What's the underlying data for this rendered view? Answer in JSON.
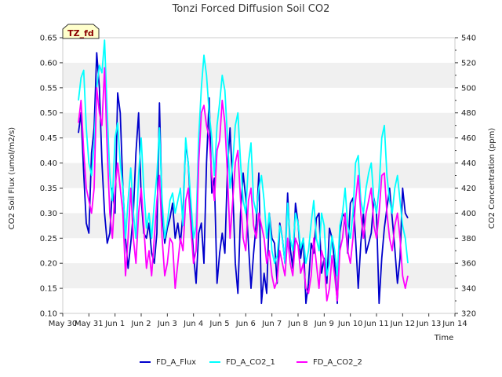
{
  "chart_data": {
    "type": "line",
    "title": "Tonzi Forced Diffusion Soil CO2",
    "xlabel": "Time",
    "ylabel_left": "CO2 Soil Flux (umol/m2/s)",
    "ylabel_right": "CO2 Concentration (ppm)",
    "tag": "TZ_fd",
    "xlim": [
      0,
      15
    ],
    "x_ticks": [
      0,
      1,
      2,
      3,
      4,
      5,
      6,
      7,
      8,
      9,
      10,
      11,
      12,
      13,
      14,
      15
    ],
    "x_tick_labels": [
      "May 30",
      "May 31",
      "Jun 1",
      "Jun 2",
      "Jun 3",
      "Jun 4",
      "Jun 5",
      "Jun 6",
      "Jun 7",
      "Jun 8",
      "Jun 9",
      "Jun 10",
      "Jun 11",
      "Jun 12",
      "Jun 13",
      "Jun 14"
    ],
    "ylim_left": [
      0.1,
      0.65
    ],
    "y_ticks_left": [
      0.1,
      0.15,
      0.2,
      0.25,
      0.3,
      0.35,
      0.4,
      0.45,
      0.5,
      0.55,
      0.6,
      0.65
    ],
    "y_tick_labels_left": [
      "0.10",
      "0.15",
      "0.20",
      "0.25",
      "0.30",
      "0.35",
      "0.40",
      "0.45",
      "0.50",
      "0.55",
      "0.60",
      "0.65"
    ],
    "ylim_right": [
      320,
      540
    ],
    "y_ticks_right": [
      320,
      340,
      360,
      380,
      400,
      420,
      440,
      460,
      480,
      500,
      520,
      540
    ],
    "y_tick_labels_right": [
      "320",
      "340",
      "360",
      "380",
      "400",
      "420",
      "440",
      "460",
      "480",
      "500",
      "520",
      "540"
    ],
    "legend_position": "bottom",
    "grid": "alternating horizontal bands",
    "series": [
      {
        "name": "FD_A_Flux",
        "axis": "left",
        "color": "#0000cc",
        "x": [
          0.6,
          0.7,
          0.8,
          0.9,
          1.0,
          1.1,
          1.2,
          1.3,
          1.4,
          1.5,
          1.6,
          1.7,
          1.8,
          1.9,
          2.0,
          2.1,
          2.2,
          2.3,
          2.4,
          2.5,
          2.6,
          2.7,
          2.8,
          2.9,
          3.0,
          3.1,
          3.2,
          3.3,
          3.4,
          3.5,
          3.6,
          3.7,
          3.8,
          3.9,
          4.0,
          4.1,
          4.2,
          4.3,
          4.4,
          4.5,
          4.6,
          4.7,
          4.8,
          4.9,
          5.0,
          5.1,
          5.2,
          5.3,
          5.4,
          5.5,
          5.6,
          5.7,
          5.8,
          5.9,
          6.0,
          6.1,
          6.2,
          6.3,
          6.4,
          6.5,
          6.6,
          6.7,
          6.8,
          6.9,
          7.0,
          7.1,
          7.2,
          7.3,
          7.4,
          7.5,
          7.6,
          7.7,
          7.8,
          7.9,
          8.0,
          8.1,
          8.2,
          8.3,
          8.4,
          8.5,
          8.6,
          8.7,
          8.8,
          8.9,
          9.0,
          9.1,
          9.2,
          9.3,
          9.4,
          9.5,
          9.6,
          9.7,
          9.8,
          9.9,
          10.0,
          10.1,
          10.2,
          10.3,
          10.4,
          10.5,
          10.6,
          10.7,
          10.8,
          10.9,
          11.0,
          11.1,
          11.2,
          11.3,
          11.4,
          11.5,
          11.6,
          11.7,
          11.8,
          11.9,
          12.0,
          12.1,
          12.2,
          12.3,
          12.4,
          12.5,
          12.6,
          12.7,
          12.8,
          12.9,
          13.0,
          13.1,
          13.2
        ],
        "y": [
          0.46,
          0.5,
          0.38,
          0.28,
          0.26,
          0.42,
          0.47,
          0.62,
          0.55,
          0.4,
          0.3,
          0.24,
          0.26,
          0.35,
          0.3,
          0.54,
          0.5,
          0.35,
          0.25,
          0.19,
          0.24,
          0.3,
          0.42,
          0.5,
          0.33,
          0.26,
          0.25,
          0.28,
          0.22,
          0.2,
          0.26,
          0.52,
          0.3,
          0.24,
          0.27,
          0.29,
          0.32,
          0.25,
          0.28,
          0.24,
          0.3,
          0.44,
          0.4,
          0.3,
          0.22,
          0.16,
          0.26,
          0.28,
          0.2,
          0.4,
          0.53,
          0.34,
          0.37,
          0.16,
          0.22,
          0.26,
          0.22,
          0.39,
          0.47,
          0.35,
          0.2,
          0.14,
          0.3,
          0.38,
          0.33,
          0.24,
          0.15,
          0.22,
          0.28,
          0.38,
          0.12,
          0.18,
          0.14,
          0.3,
          0.25,
          0.24,
          0.16,
          0.28,
          0.25,
          0.2,
          0.34,
          0.23,
          0.19,
          0.32,
          0.28,
          0.21,
          0.25,
          0.12,
          0.16,
          0.24,
          0.22,
          0.29,
          0.3,
          0.18,
          0.21,
          0.16,
          0.27,
          0.25,
          0.2,
          0.12,
          0.26,
          0.3,
          0.29,
          0.22,
          0.32,
          0.33,
          0.25,
          0.15,
          0.24,
          0.3,
          0.22,
          0.24,
          0.26,
          0.33,
          0.3,
          0.12,
          0.21,
          0.27,
          0.31,
          0.35,
          0.29,
          0.23,
          0.16,
          0.21,
          0.35,
          0.3,
          0.29
        ]
      },
      {
        "name": "FD_A_CO2_1",
        "axis": "right",
        "color": "#00ffff",
        "x": [
          0.6,
          0.7,
          0.8,
          0.9,
          1.0,
          1.1,
          1.2,
          1.3,
          1.4,
          1.5,
          1.6,
          1.7,
          1.8,
          1.9,
          2.0,
          2.1,
          2.2,
          2.3,
          2.4,
          2.5,
          2.6,
          2.7,
          2.8,
          2.9,
          3.0,
          3.1,
          3.2,
          3.3,
          3.4,
          3.5,
          3.6,
          3.7,
          3.8,
          3.9,
          4.0,
          4.1,
          4.2,
          4.3,
          4.4,
          4.5,
          4.6,
          4.7,
          4.8,
          4.9,
          5.0,
          5.1,
          5.2,
          5.3,
          5.4,
          5.5,
          5.6,
          5.7,
          5.8,
          5.9,
          6.0,
          6.1,
          6.2,
          6.3,
          6.4,
          6.5,
          6.6,
          6.7,
          6.8,
          6.9,
          7.0,
          7.1,
          7.2,
          7.3,
          7.4,
          7.5,
          7.6,
          7.7,
          7.8,
          7.9,
          8.0,
          8.1,
          8.2,
          8.3,
          8.4,
          8.5,
          8.6,
          8.7,
          8.8,
          8.9,
          9.0,
          9.1,
          9.2,
          9.3,
          9.4,
          9.5,
          9.6,
          9.7,
          9.8,
          9.9,
          10.0,
          10.1,
          10.2,
          10.3,
          10.4,
          10.5,
          10.6,
          10.7,
          10.8,
          10.9,
          11.0,
          11.1,
          11.2,
          11.3,
          11.4,
          11.5,
          11.6,
          11.7,
          11.8,
          11.9,
          12.0,
          12.1,
          12.2,
          12.3,
          12.4,
          12.5,
          12.6,
          12.7,
          12.8,
          12.9,
          13.0,
          13.1,
          13.2
        ],
        "y": [
          490,
          508,
          514,
          468,
          440,
          430,
          455,
          500,
          518,
          512,
          538,
          480,
          430,
          410,
          460,
          472,
          440,
          420,
          380,
          410,
          436,
          400,
          380,
          430,
          460,
          420,
          388,
          400,
          380,
          408,
          430,
          468,
          410,
          380,
          392,
          410,
          416,
          400,
          410,
          420,
          390,
          460,
          440,
          410,
          380,
          390,
          460,
          500,
          526,
          510,
          480,
          460,
          430,
          470,
          488,
          510,
          498,
          460,
          420,
          440,
          470,
          480,
          440,
          410,
          400,
          440,
          456,
          410,
          400,
          420,
          430,
          410,
          380,
          400,
          370,
          360,
          366,
          390,
          380,
          360,
          408,
          380,
          370,
          400,
          392,
          372,
          380,
          360,
          370,
          392,
          410,
          380,
          370,
          400,
          390,
          350,
          360,
          382,
          370,
          350,
          390,
          400,
          420,
          390,
          380,
          400,
          440,
          446,
          410,
          400,
          420,
          432,
          440,
          410,
          400,
          420,
          460,
          470,
          430,
          410,
          400,
          420,
          430,
          410,
          390,
          380,
          360
        ],
        "y_approx_note": ""
      },
      {
        "name": "FD_A_CO2_2",
        "axis": "right",
        "color": "#ff00ff",
        "x": [
          0.6,
          0.7,
          0.8,
          0.9,
          1.0,
          1.1,
          1.2,
          1.3,
          1.4,
          1.5,
          1.6,
          1.7,
          1.8,
          1.9,
          2.0,
          2.1,
          2.2,
          2.3,
          2.4,
          2.5,
          2.6,
          2.7,
          2.8,
          2.9,
          3.0,
          3.1,
          3.2,
          3.3,
          3.4,
          3.5,
          3.6,
          3.7,
          3.8,
          3.9,
          4.0,
          4.1,
          4.2,
          4.3,
          4.4,
          4.5,
          4.6,
          4.7,
          4.8,
          4.9,
          5.0,
          5.1,
          5.2,
          5.3,
          5.4,
          5.5,
          5.6,
          5.7,
          5.8,
          5.9,
          6.0,
          6.1,
          6.2,
          6.3,
          6.4,
          6.5,
          6.6,
          6.7,
          6.8,
          6.9,
          7.0,
          7.1,
          7.2,
          7.3,
          7.4,
          7.5,
          7.6,
          7.7,
          7.8,
          7.9,
          8.0,
          8.1,
          8.2,
          8.3,
          8.4,
          8.5,
          8.6,
          8.7,
          8.8,
          8.9,
          9.0,
          9.1,
          9.2,
          9.3,
          9.4,
          9.5,
          9.6,
          9.7,
          9.8,
          9.9,
          10.0,
          10.1,
          10.2,
          10.3,
          10.4,
          10.5,
          10.6,
          10.7,
          10.8,
          10.9,
          11.0,
          11.1,
          11.2,
          11.3,
          11.4,
          11.5,
          11.6,
          11.7,
          11.8,
          11.9,
          12.0,
          12.1,
          12.2,
          12.3,
          12.4,
          12.5,
          12.6,
          12.7,
          12.8,
          12.9,
          13.0,
          13.1,
          13.2
        ],
        "y": [
          472,
          490,
          450,
          420,
          410,
          400,
          420,
          500,
          480,
          470,
          516,
          450,
          400,
          380,
          420,
          440,
          420,
          400,
          350,
          380,
          420,
          380,
          360,
          400,
          420,
          390,
          356,
          370,
          350,
          380,
          410,
          430,
          380,
          350,
          360,
          380,
          376,
          340,
          360,
          380,
          370,
          410,
          420,
          390,
          360,
          370,
          440,
          480,
          486,
          470,
          460,
          430,
          410,
          450,
          458,
          490,
          472,
          430,
          380,
          410,
          440,
          450,
          410,
          380,
          370,
          410,
          420,
          390,
          380,
          400,
          390,
          380,
          360,
          370,
          350,
          340,
          346,
          370,
          360,
          350,
          380,
          360,
          350,
          380,
          374,
          352,
          360,
          340,
          336,
          350,
          380,
          360,
          340,
          370,
          362,
          330,
          340,
          366,
          350,
          330,
          370,
          380,
          400,
          370,
          360,
          380,
          410,
          430,
          400,
          380,
          400,
          410,
          420,
          390,
          380,
          400,
          430,
          432,
          400,
          380,
          370,
          390,
          400,
          380,
          350,
          340,
          350
        ],
        "y_approx_note": ""
      }
    ]
  }
}
